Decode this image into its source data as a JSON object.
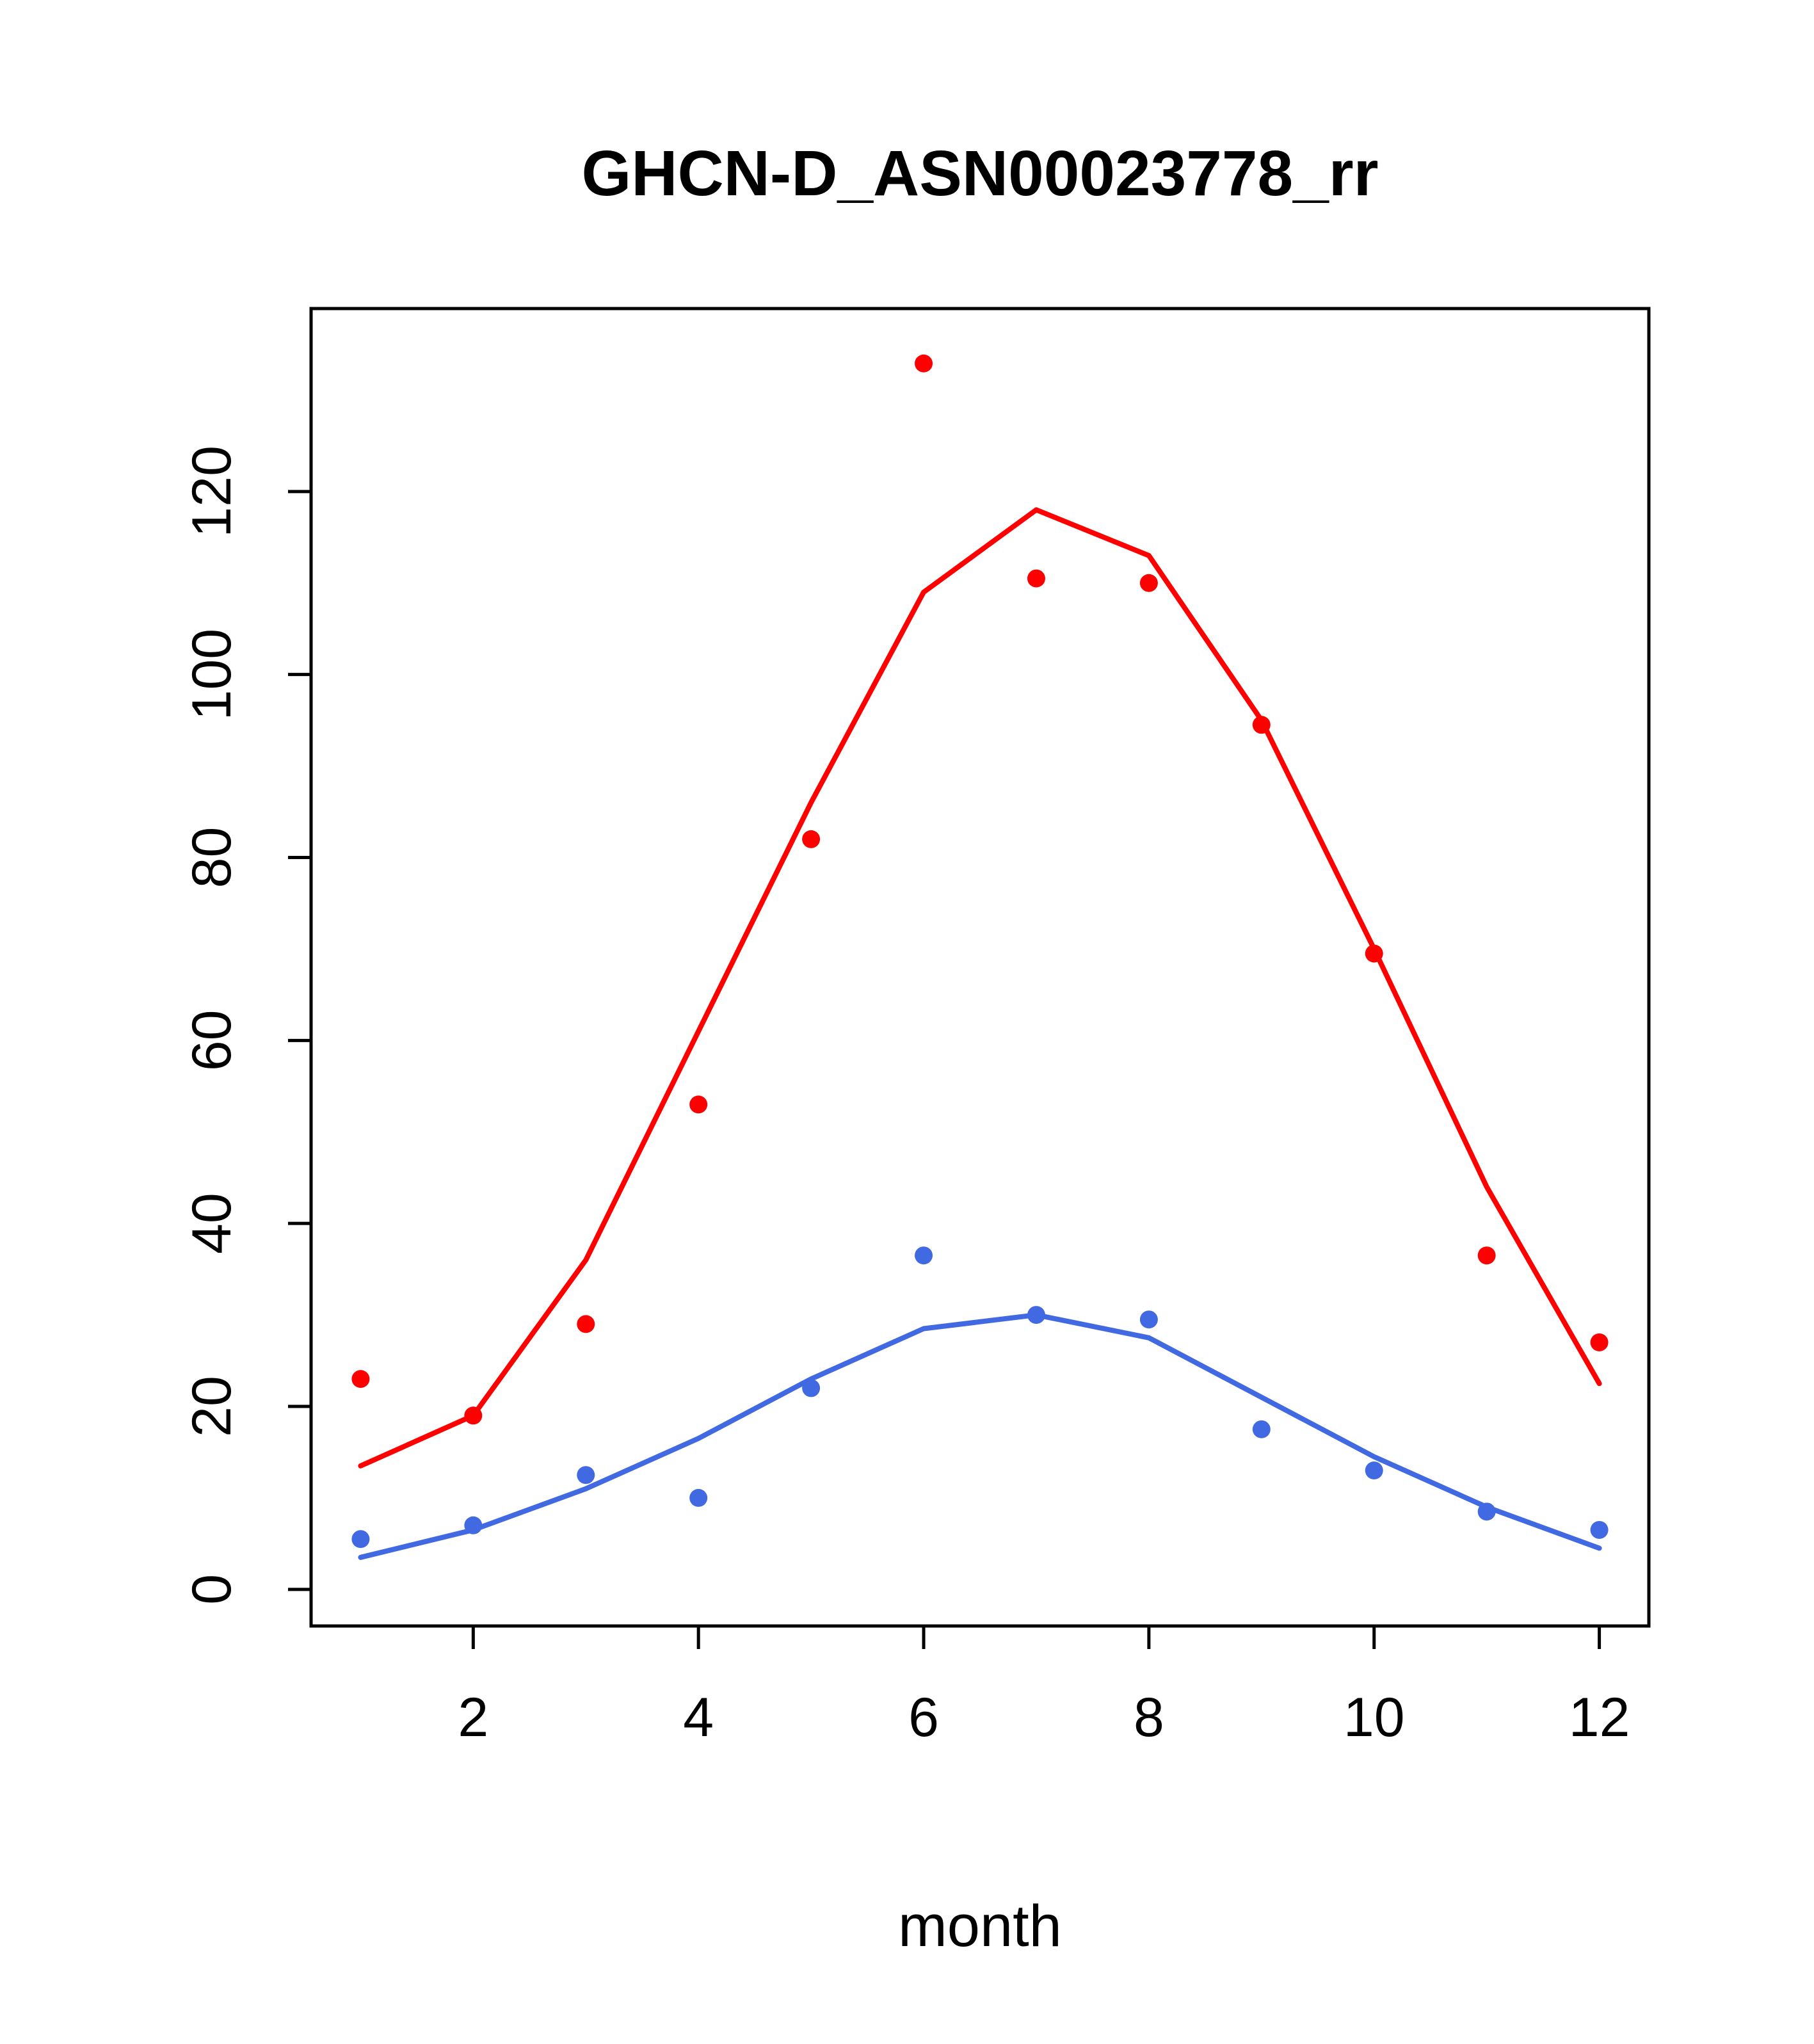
{
  "chart_data": {
    "type": "scatter",
    "title": "GHCN-D_ASN00023778_rr",
    "xlabel": "month",
    "ylabel": "",
    "x": [
      1,
      2,
      3,
      4,
      5,
      6,
      7,
      8,
      9,
      10,
      11,
      12
    ],
    "xlim": [
      0.56,
      12.44
    ],
    "ylim": [
      -4,
      140
    ],
    "x_ticks": [
      2,
      4,
      6,
      8,
      10,
      12
    ],
    "y_ticks": [
      0,
      20,
      40,
      60,
      80,
      100,
      120
    ],
    "grid": "off",
    "legend": "none",
    "axis_color": "#000000",
    "background": "#ffffff",
    "colors": {
      "red_series": "#ff0000",
      "blue_series": "#4169e1"
    },
    "series": [
      {
        "name": "red-line-fit",
        "type": "line",
        "color": "#ff0000",
        "values": [
          13.5,
          19,
          36,
          61,
          86,
          109,
          118,
          113,
          95,
          70,
          44,
          22.5
        ]
      },
      {
        "name": "blue-line-fit",
        "type": "line",
        "color": "#4169e1",
        "values": [
          3.5,
          6.5,
          11,
          16.5,
          23,
          28.5,
          30,
          27.5,
          21,
          14.5,
          9,
          4.5
        ]
      },
      {
        "name": "red-points",
        "type": "points",
        "color": "#ff0000",
        "values": [
          23,
          19,
          29,
          53,
          82,
          134,
          110.5,
          110,
          94.5,
          69.5,
          36.5,
          27
        ]
      },
      {
        "name": "blue-points",
        "type": "points",
        "color": "#4169e1",
        "values": [
          5.5,
          7,
          12.5,
          10,
          22,
          36.5,
          30,
          29.5,
          17.5,
          13,
          8.5,
          6.5
        ]
      }
    ]
  }
}
